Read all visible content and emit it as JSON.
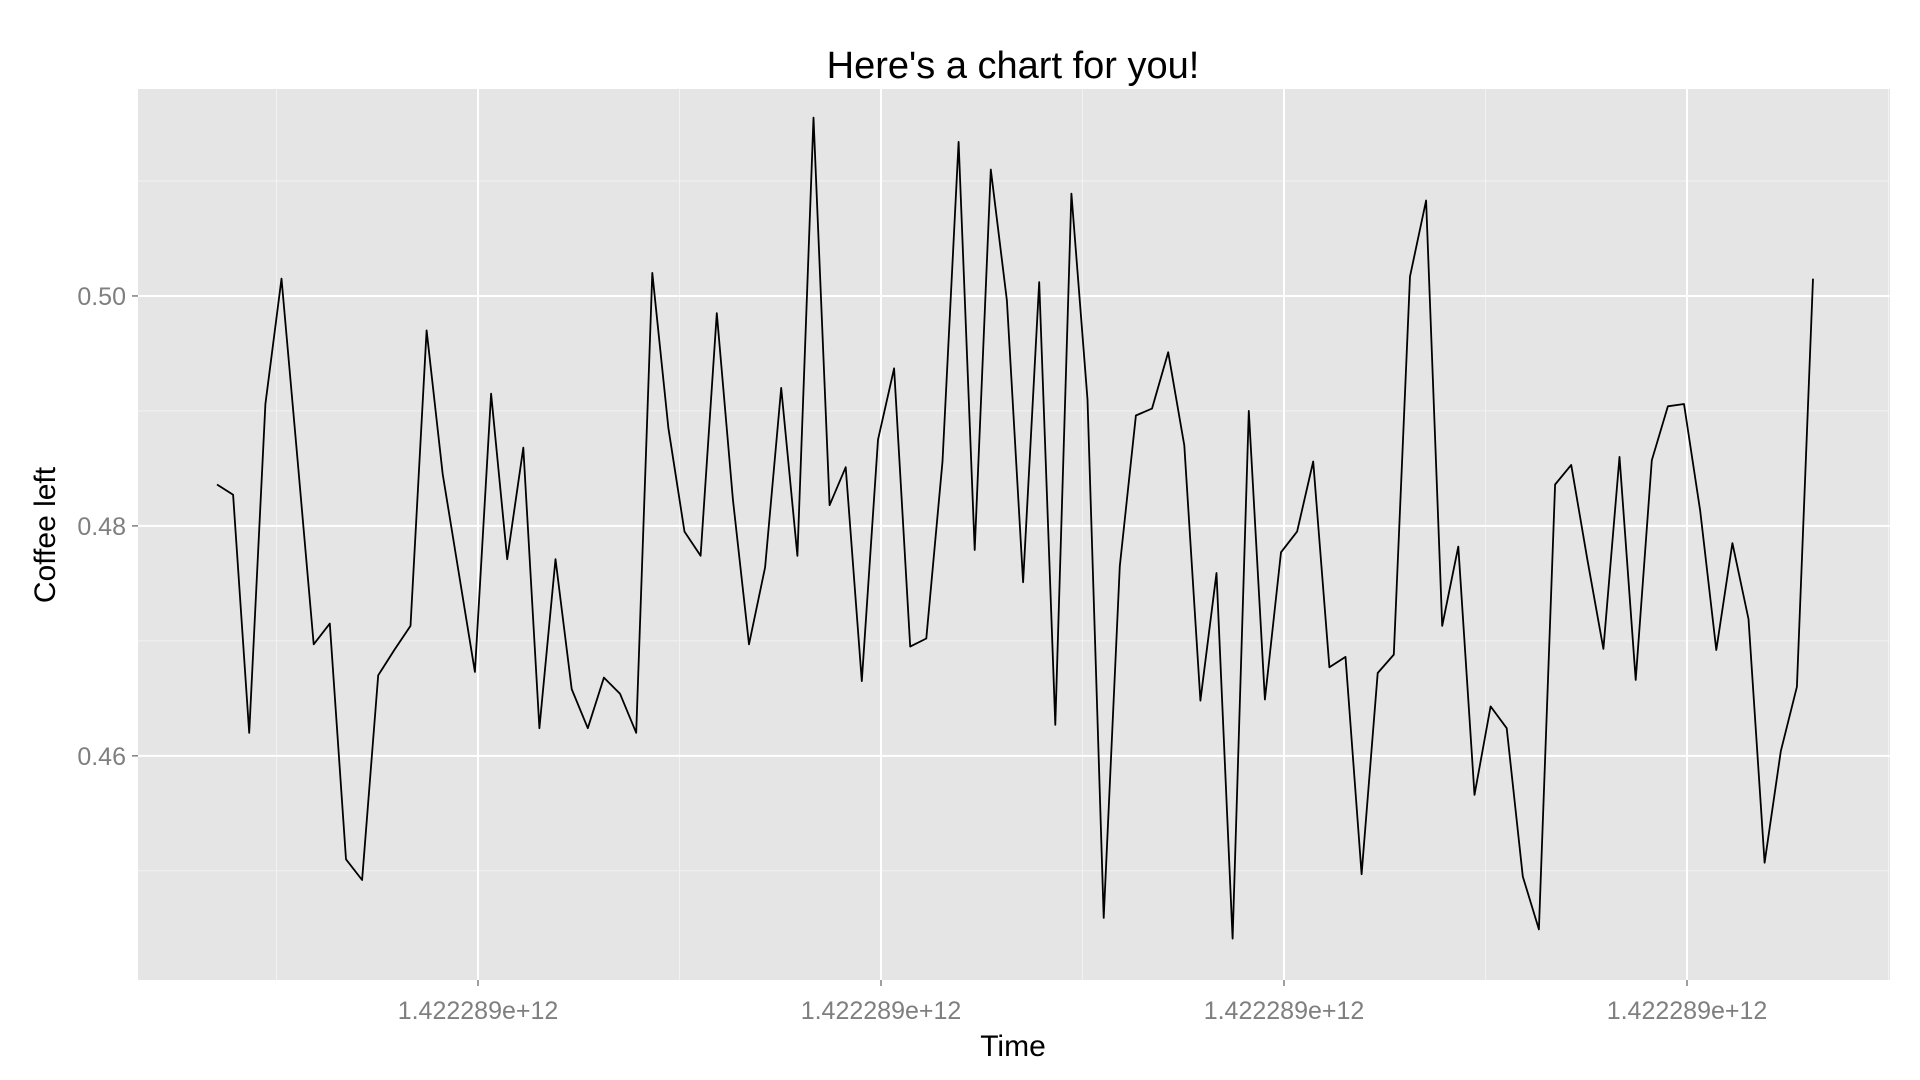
{
  "chart_data": {
    "type": "line",
    "title": "Here's a chart for you!",
    "xlabel": "Time",
    "ylabel": "Coffee left",
    "x_tick_labels": [
      "1.422289e+12",
      "1.422289e+12",
      "1.422289e+12",
      "1.422289e+12"
    ],
    "y_ticks": [
      0.46,
      0.48,
      0.5
    ],
    "y_tick_labels": [
      "0.46",
      "0.48",
      "0.50"
    ],
    "ylim": [
      0.4405,
      0.518
    ],
    "grid": true,
    "legend": "none",
    "series": [
      {
        "values": [
          0.4836,
          0.4827,
          0.462,
          0.4906,
          0.5015,
          0.4857,
          0.4697,
          0.4715,
          0.451,
          0.4492,
          0.467,
          0.4692,
          0.4713,
          0.497,
          0.4845,
          0.4759,
          0.4673,
          0.4915,
          0.4771,
          0.4868,
          0.4624,
          0.4771,
          0.4658,
          0.4624,
          0.4668,
          0.4654,
          0.462,
          0.502,
          0.4885,
          0.4795,
          0.4774,
          0.4985,
          0.4823,
          0.4697,
          0.4764,
          0.492,
          0.4774,
          0.5155,
          0.4818,
          0.4851,
          0.4665,
          0.4875,
          0.4937,
          0.4695,
          0.4702,
          0.4856,
          0.5134,
          0.4779,
          0.511,
          0.4996,
          0.4751,
          0.5012,
          0.4627,
          0.5089,
          0.491,
          0.4459,
          0.4765,
          0.4896,
          0.4902,
          0.4951,
          0.487,
          0.4648,
          0.4759,
          0.4441,
          0.49,
          0.4649,
          0.4777,
          0.4795,
          0.4856,
          0.4677,
          0.4686,
          0.4497,
          0.4672,
          0.4688,
          0.5017,
          0.5083,
          0.4713,
          0.4782,
          0.4566,
          0.4643,
          0.4624,
          0.4495,
          0.4449,
          0.4836,
          0.4853,
          0.4771,
          0.4693,
          0.486,
          0.4666,
          0.4857,
          0.4904,
          0.4906,
          0.4813,
          0.4692,
          0.4785,
          0.4719,
          0.4507,
          0.4604,
          0.466,
          0.5015
        ]
      }
    ]
  }
}
